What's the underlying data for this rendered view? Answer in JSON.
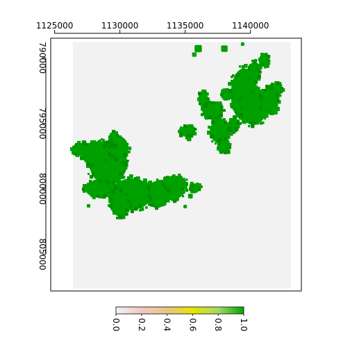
{
  "chart_data": {
    "type": "heatmap",
    "x_axis": {
      "position": "top",
      "ticks": [
        1125000,
        1130000,
        1135000,
        1140000
      ],
      "labels": [
        "1125000",
        "1130000",
        "1135000",
        "1140000"
      ],
      "range": [
        1124700,
        1143900
      ]
    },
    "y_axis": {
      "position": "left",
      "orientation": "reversed",
      "ticks": [
        790000,
        795000,
        800000,
        805000
      ],
      "labels": [
        "790000",
        "795000",
        "800000",
        "805000"
      ],
      "range": [
        788500,
        807800
      ]
    },
    "raster_extent": {
      "x": [
        1126400,
        1143100
      ],
      "y": [
        788800,
        807600
      ]
    },
    "background_value": 0,
    "mask_value": 1,
    "colors": {
      "background": "#f2f2f2",
      "mask": "#00a000",
      "mask_edge": "#008c00"
    },
    "grid": false,
    "legend": {
      "type": "colorbar",
      "placement": "bottom",
      "ticks": [
        0.0,
        0.2,
        0.4,
        0.6,
        0.8,
        1.0
      ],
      "labels": [
        "0.0",
        "0.2",
        "0.4",
        "0.6",
        "0.8",
        "1.0"
      ],
      "colors": [
        "#f2f2f2",
        "#f0c9c0",
        "#e8c58a",
        "#e6e600",
        "#a6d96a",
        "#00a600"
      ]
    },
    "regions": [
      {
        "name": "southwest",
        "blobs": [
          {
            "cx": 1129100,
            "cy": 798000,
            "rx": 1450,
            "ry": 1700
          },
          {
            "cx": 1128200,
            "cy": 797300,
            "rx": 1200,
            "ry": 900
          },
          {
            "cx": 1127100,
            "cy": 797000,
            "rx": 800,
            "ry": 500
          },
          {
            "cx": 1129900,
            "cy": 796900,
            "rx": 750,
            "ry": 900
          },
          {
            "cx": 1129600,
            "cy": 796200,
            "rx": 330,
            "ry": 520
          },
          {
            "cx": 1130900,
            "cy": 800400,
            "rx": 1550,
            "ry": 1200
          },
          {
            "cx": 1130000,
            "cy": 801000,
            "rx": 800,
            "ry": 1100
          },
          {
            "cx": 1128500,
            "cy": 800000,
            "rx": 1150,
            "ry": 700
          },
          {
            "cx": 1133500,
            "cy": 800100,
            "rx": 1500,
            "ry": 800
          },
          {
            "cx": 1134200,
            "cy": 799600,
            "rx": 900,
            "ry": 600
          },
          {
            "cx": 1132800,
            "cy": 801000,
            "rx": 600,
            "ry": 400
          },
          {
            "cx": 1135800,
            "cy": 799950,
            "rx": 420,
            "ry": 280
          },
          {
            "cx": 1130300,
            "cy": 798200,
            "rx": 230,
            "ry": 220
          }
        ],
        "dots": [
          {
            "x": 1129600,
            "y": 795850,
            "r": 150
          },
          {
            "x": 1135400,
            "y": 800550,
            "r": 180
          },
          {
            "x": 1135000,
            "y": 801350,
            "r": 130
          },
          {
            "x": 1135500,
            "y": 799600,
            "r": 120
          },
          {
            "x": 1127600,
            "y": 801300,
            "r": 130
          },
          {
            "x": 1131700,
            "y": 801550,
            "r": 150
          }
        ]
      },
      {
        "name": "northeast",
        "blobs": [
          {
            "cx": 1139500,
            "cy": 792800,
            "rx": 1000,
            "ry": 2000
          },
          {
            "cx": 1140200,
            "cy": 793700,
            "rx": 1100,
            "ry": 1400
          },
          {
            "cx": 1140300,
            "cy": 791100,
            "rx": 450,
            "ry": 800
          },
          {
            "cx": 1141400,
            "cy": 793300,
            "rx": 700,
            "ry": 1000
          },
          {
            "cx": 1142000,
            "cy": 792400,
            "rx": 450,
            "ry": 500
          },
          {
            "cx": 1141100,
            "cy": 790200,
            "rx": 350,
            "ry": 450
          },
          {
            "cx": 1137100,
            "cy": 794000,
            "rx": 800,
            "ry": 700
          },
          {
            "cx": 1136400,
            "cy": 793200,
            "rx": 350,
            "ry": 600
          },
          {
            "cx": 1137700,
            "cy": 795600,
            "rx": 800,
            "ry": 950
          },
          {
            "cx": 1138000,
            "cy": 796700,
            "rx": 450,
            "ry": 550
          },
          {
            "cx": 1138300,
            "cy": 792800,
            "rx": 500,
            "ry": 350
          },
          {
            "cx": 1138700,
            "cy": 795200,
            "rx": 350,
            "ry": 450
          },
          {
            "cx": 1135200,
            "cy": 795600,
            "rx": 550,
            "ry": 450
          }
        ],
        "dots": [
          {
            "x": 1136000,
            "y": 789300,
            "r": 280
          },
          {
            "x": 1135700,
            "y": 789750,
            "r": 170
          },
          {
            "x": 1138000,
            "y": 789300,
            "r": 250
          },
          {
            "x": 1139400,
            "y": 788950,
            "r": 130
          },
          {
            "x": 1140700,
            "y": 790700,
            "r": 200
          },
          {
            "x": 1139300,
            "y": 791700,
            "r": 140
          },
          {
            "x": 1138000,
            "y": 792500,
            "r": 160
          },
          {
            "x": 1139800,
            "y": 791400,
            "r": 160
          },
          {
            "x": 1135300,
            "y": 796200,
            "r": 170
          },
          {
            "x": 1134700,
            "y": 795500,
            "r": 150
          }
        ]
      }
    ]
  }
}
